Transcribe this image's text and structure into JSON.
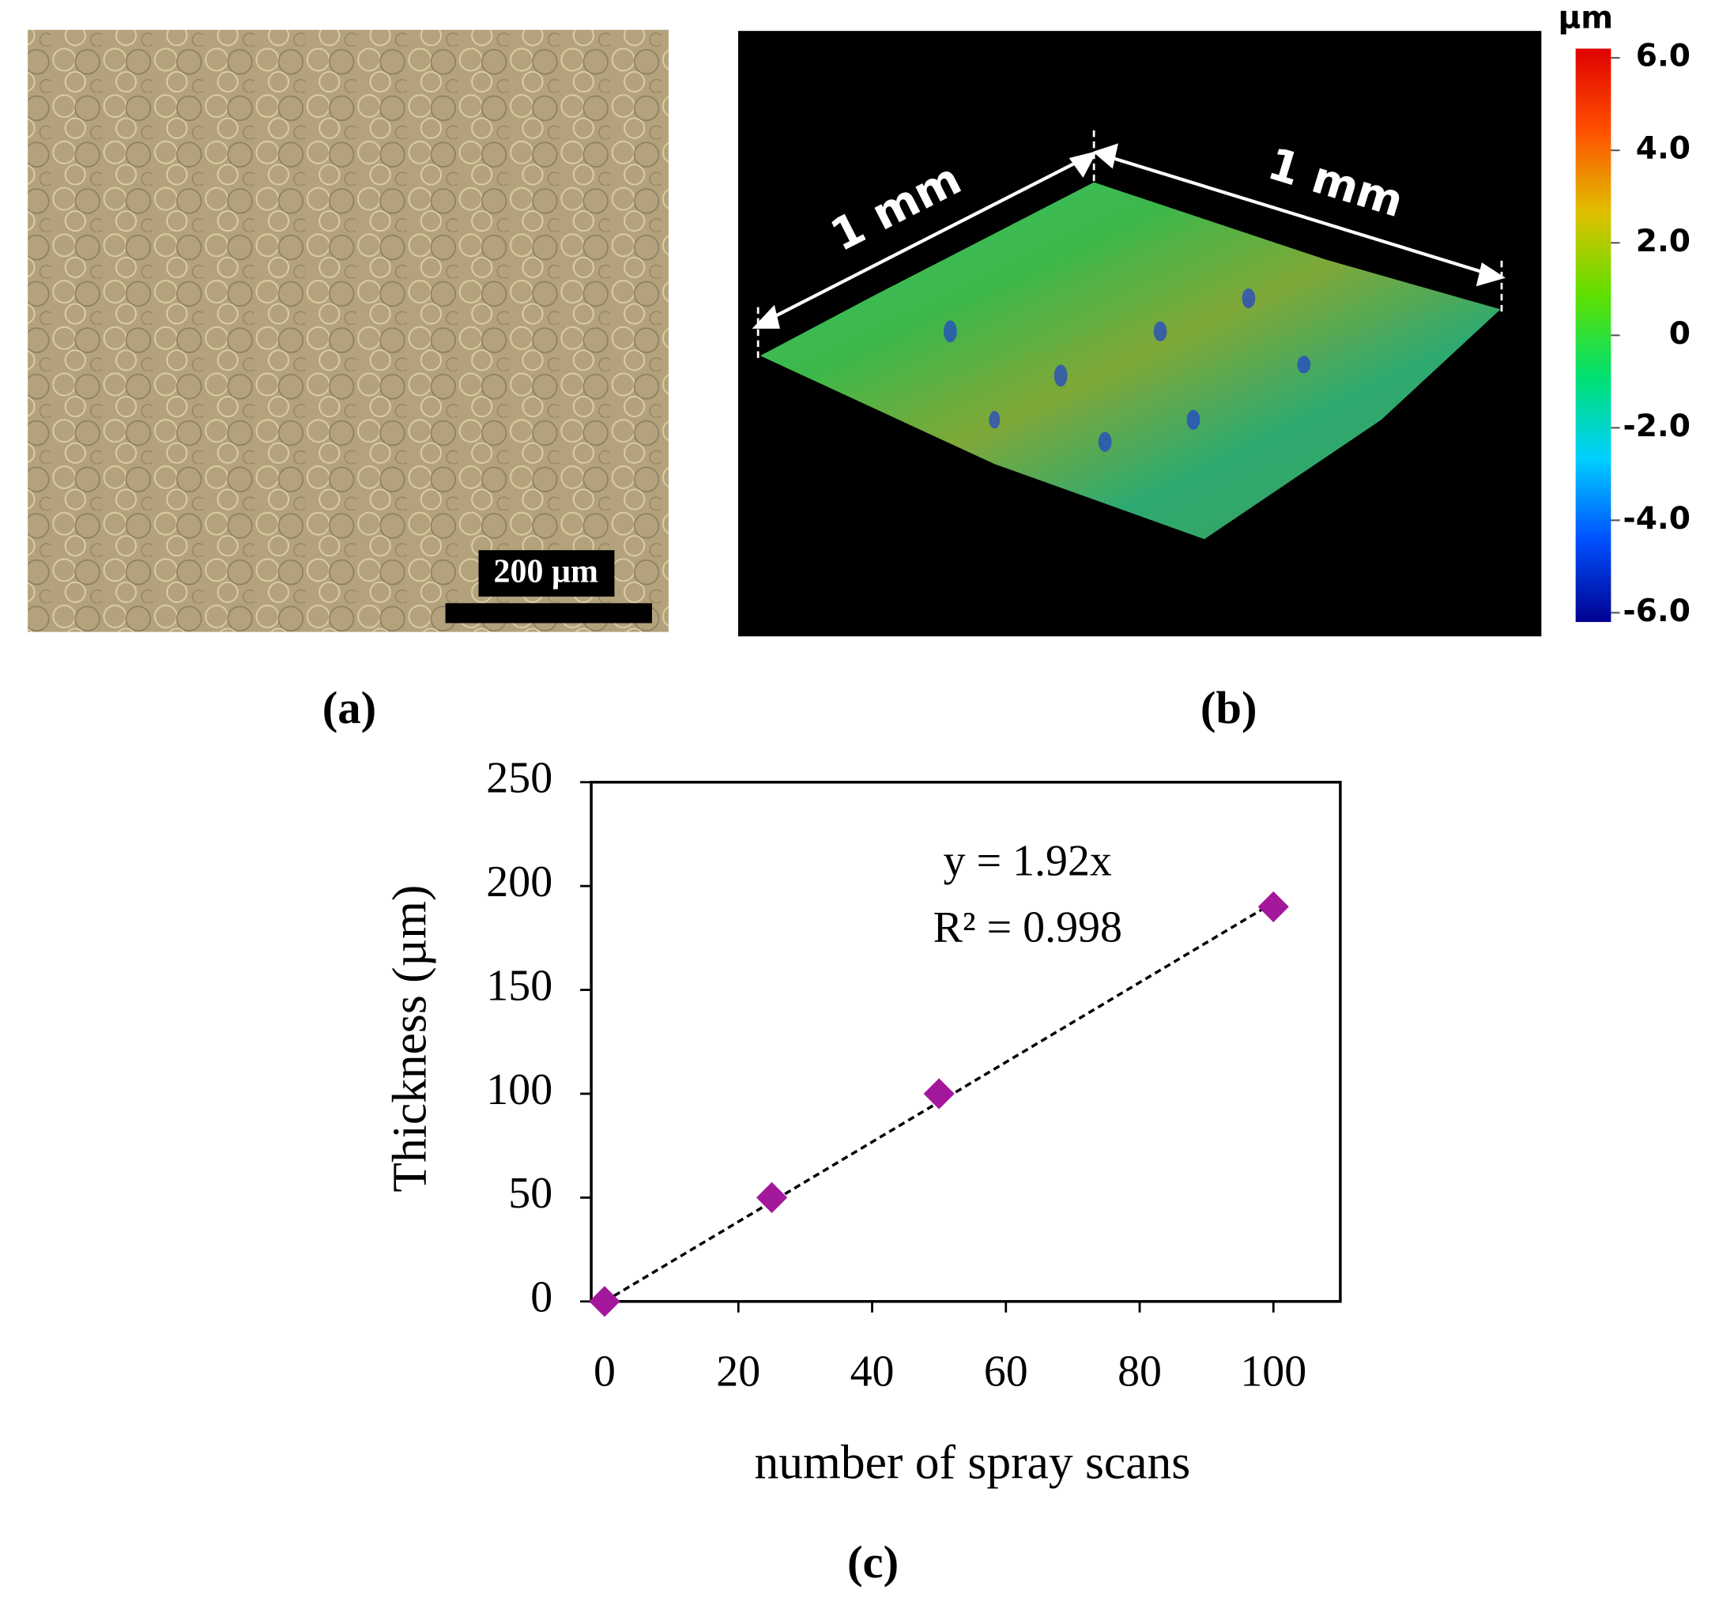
{
  "figure": {
    "panel_a_label": "(a)",
    "panel_b_label": "(b)",
    "panel_c_label": "(c)",
    "scale_bar_label": "200 µm",
    "dimension_left": "1 mm",
    "dimension_right": "1 mm"
  },
  "chart_data": [
    {
      "type": "scatter",
      "xlabel": "number of spray scans",
      "ylabel": "Thickness (µm)",
      "x": [
        0,
        25,
        50,
        100
      ],
      "series": [
        {
          "name": "Thickness",
          "color": "#a3189a",
          "values": [
            0,
            50,
            100,
            190
          ]
        }
      ],
      "xlim": [
        -2,
        110
      ],
      "ylim": [
        0,
        250
      ],
      "xticks": [
        0,
        20,
        40,
        60,
        80,
        100
      ],
      "yticks": [
        0,
        50,
        100,
        150,
        200,
        250
      ],
      "grid": false,
      "trendline": {
        "slope": 1.92,
        "equation_label": "y = 1.92x",
        "r2_label": "R² = 0.998"
      }
    },
    {
      "type": "colorbar",
      "title": "µm",
      "ylim": [
        -6.2,
        6.2
      ],
      "yticks": [
        {
          "value": 6,
          "label": "6.0"
        },
        {
          "value": 4,
          "label": "4.0"
        },
        {
          "value": 2,
          "label": "2.0"
        },
        0,
        {
          "value": -2,
          "label": "-2.0"
        },
        {
          "value": -4,
          "label": "-4.0"
        },
        {
          "value": -6,
          "label": "-6.0"
        }
      ],
      "colors": [
        "#00008f",
        "#0050ff",
        "#00d0ff",
        "#00e070",
        "#60e000",
        "#e0c000",
        "#ff5000",
        "#e00000"
      ]
    }
  ]
}
